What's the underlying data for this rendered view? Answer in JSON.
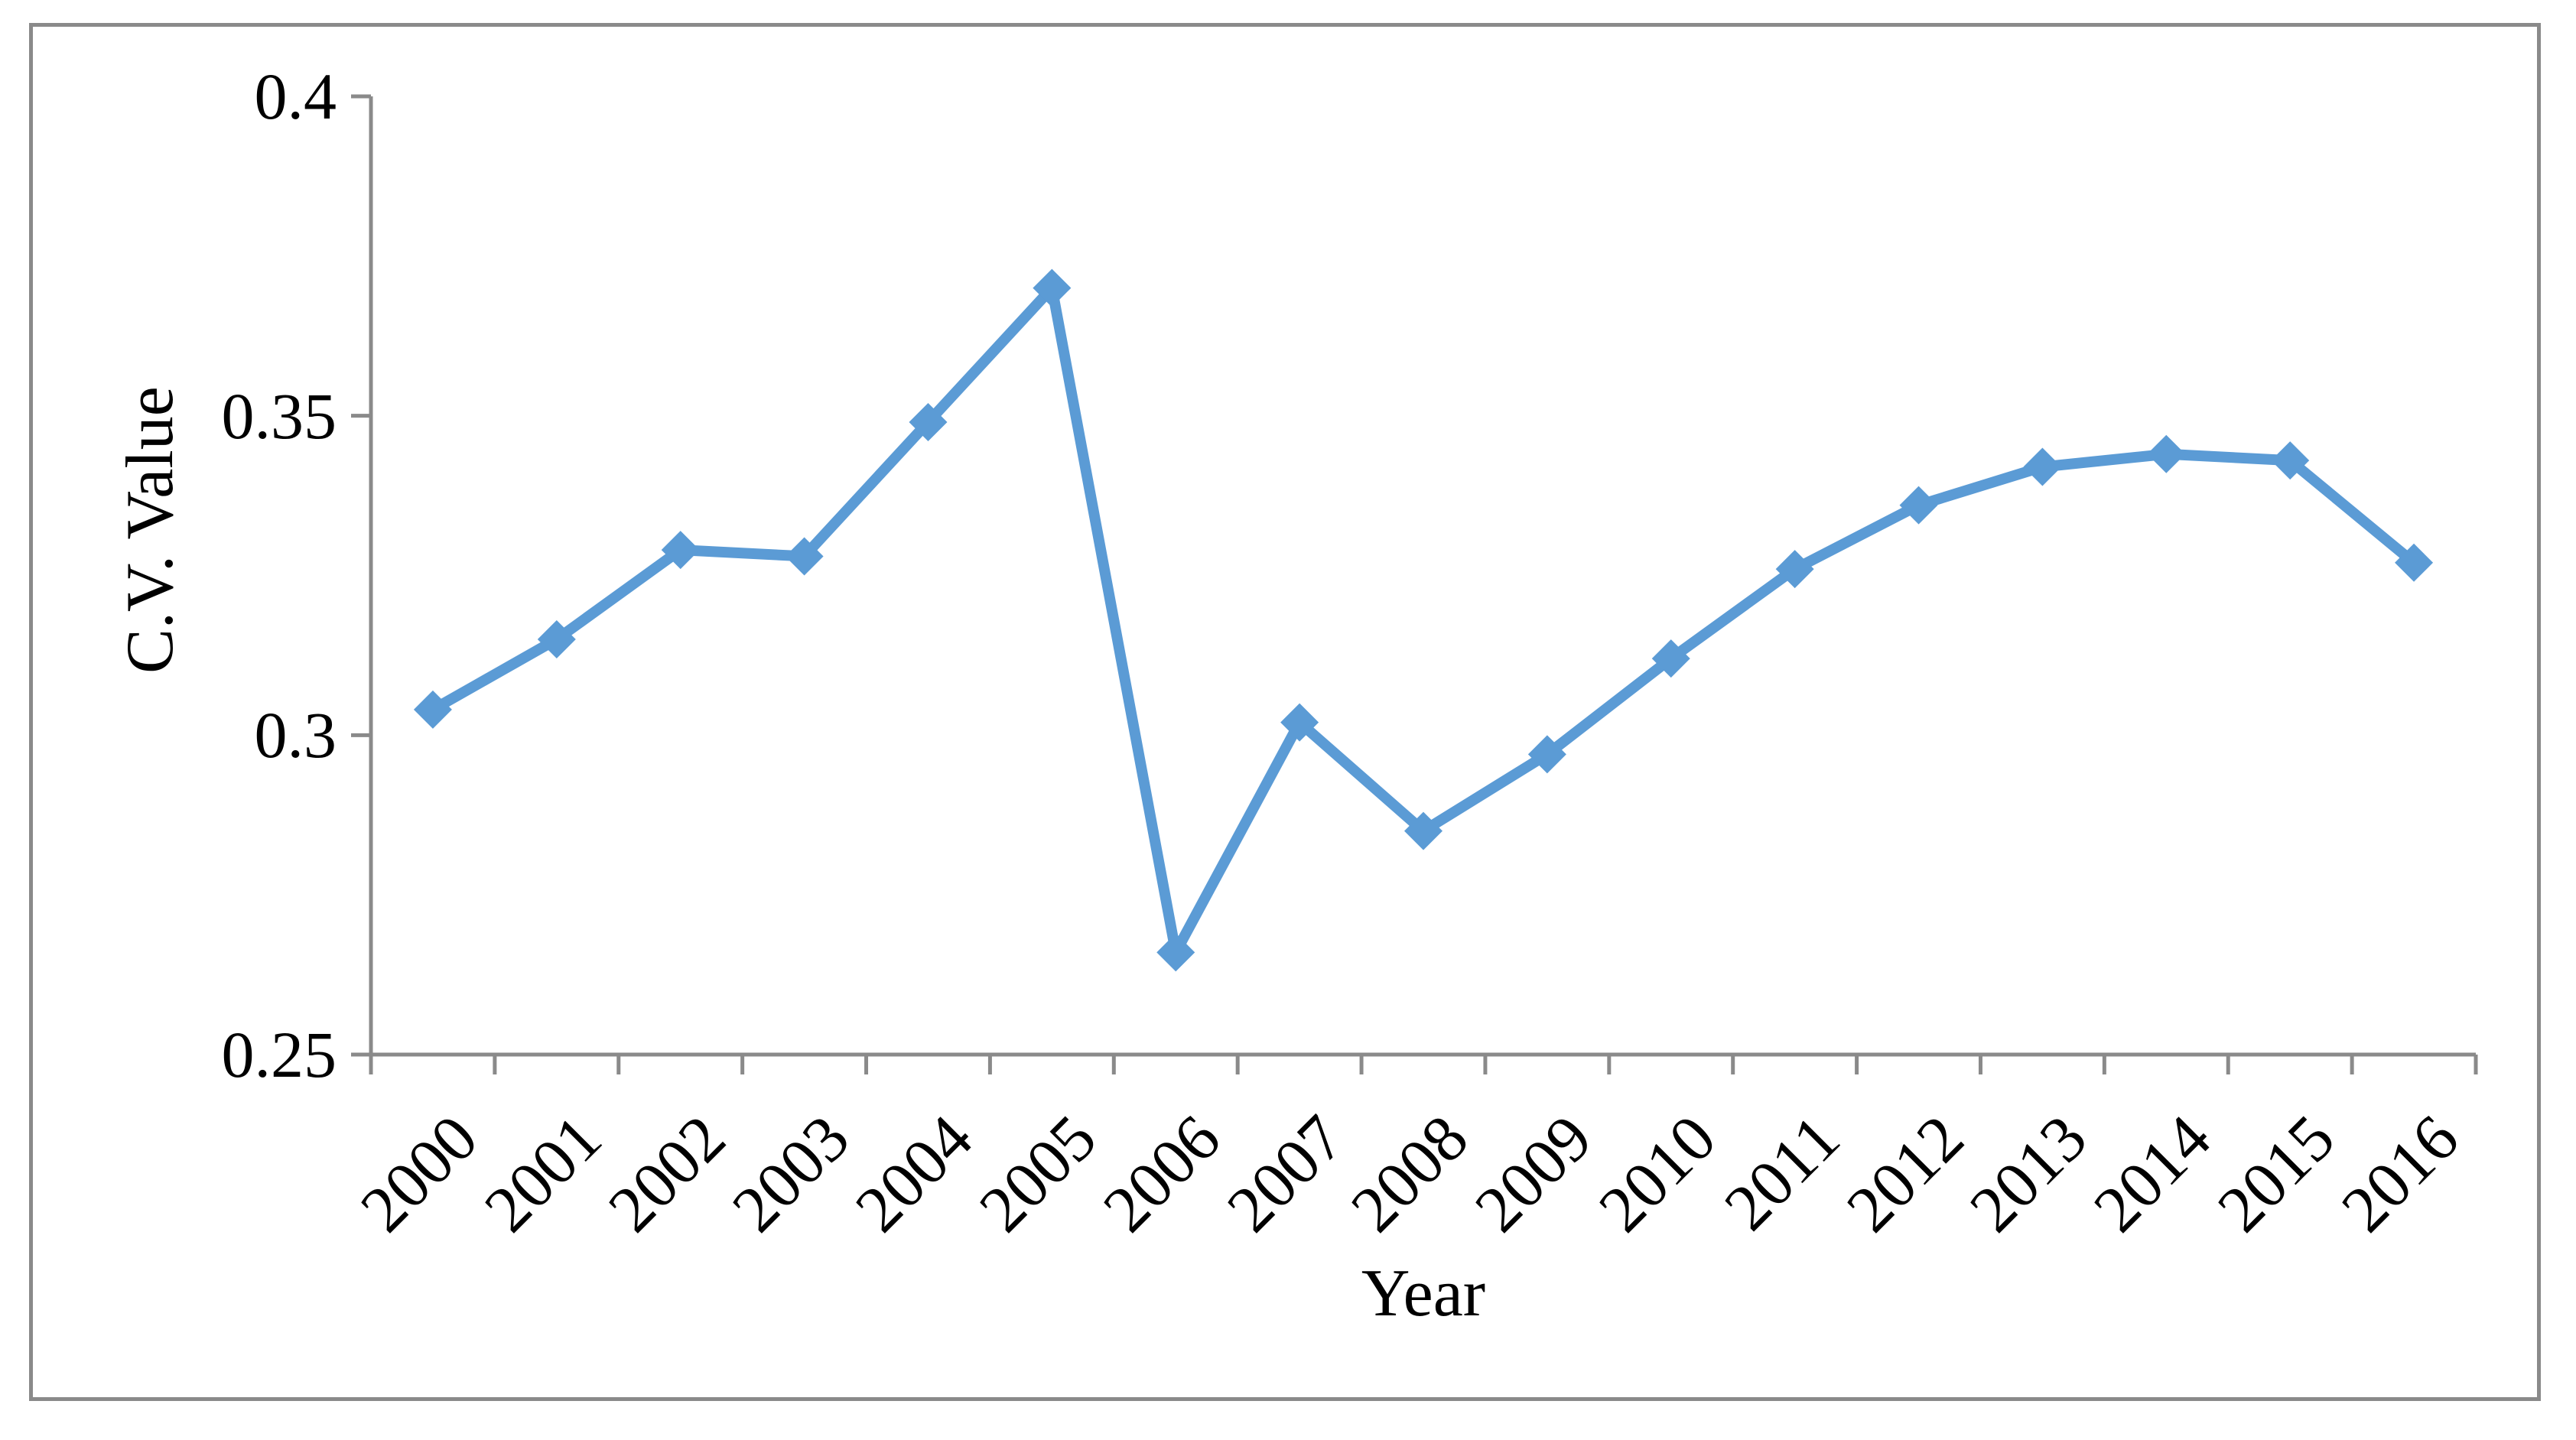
{
  "figure": {
    "background_color": "#FFFFFF",
    "border_color": "#8A8A8A"
  },
  "chart_data": {
    "type": "line",
    "title": "",
    "xlabel": "Year",
    "ylabel": "C.V. Value",
    "categories": [
      "2000",
      "2001",
      "2002",
      "2003",
      "2004",
      "2005",
      "2006",
      "2007",
      "2008",
      "2009",
      "2010",
      "2011",
      "2012",
      "2013",
      "2014",
      "2015",
      "2016"
    ],
    "values": [
      0.304,
      0.315,
      0.329,
      0.328,
      0.349,
      0.37,
      0.266,
      0.302,
      0.285,
      0.297,
      0.312,
      0.326,
      0.336,
      0.342,
      0.344,
      0.343,
      0.327
    ],
    "ylim": [
      0.25,
      0.4
    ],
    "yticks": [
      0.4,
      0.35,
      0.3,
      0.25
    ],
    "ytick_labels": [
      "0.4",
      "0.35",
      "0.3",
      "0.25"
    ],
    "x_tick_label_rotation_deg": -45,
    "grid": false,
    "legend": "none",
    "line_color": "#5B9BD5",
    "marker": "diamond",
    "marker_color": "#5B9BD5",
    "axis_color": "#8A8A8A",
    "tick_label_color": "#000000"
  }
}
